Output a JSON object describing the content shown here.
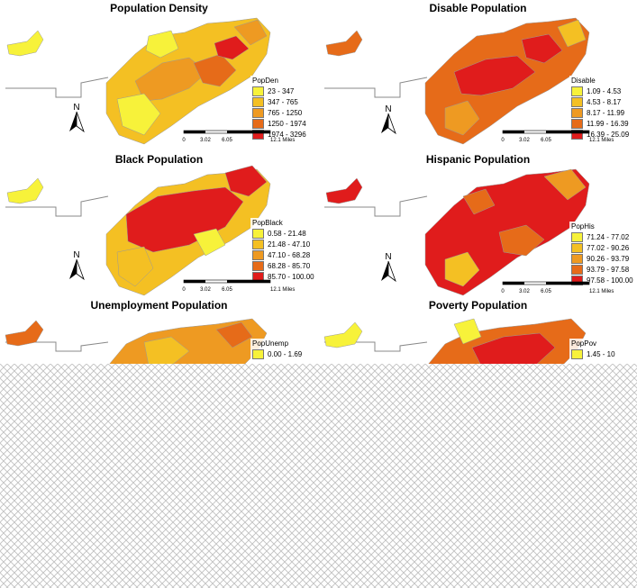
{
  "panels": [
    {
      "title": "Population Density",
      "legend": {
        "field": "PopDen",
        "classes": [
          {
            "label": "23 - 347",
            "color": "#f7f23a"
          },
          {
            "label": "347 - 765",
            "color": "#f4c023"
          },
          {
            "label": "765 - 1250",
            "color": "#ee9a22"
          },
          {
            "label": "1250 - 1974",
            "color": "#e66b19"
          },
          {
            "label": "1974 - 3296",
            "color": "#e01c1c"
          }
        ]
      },
      "scale": {
        "ticks": [
          "0",
          "3.02",
          "6.05",
          "12.1 Miles"
        ]
      }
    },
    {
      "title": "Disable Population",
      "legend": {
        "field": "Disable",
        "classes": [
          {
            "label": "1.09 - 4.53",
            "color": "#f7f23a"
          },
          {
            "label": "4.53 - 8.17",
            "color": "#f4c023"
          },
          {
            "label": "8.17 - 11.99",
            "color": "#ee9a22"
          },
          {
            "label": "11.99 - 16.39",
            "color": "#e66b19"
          },
          {
            "label": "16.39 - 25.09",
            "color": "#e01c1c"
          }
        ]
      },
      "scale": {
        "ticks": [
          "0",
          "3.02",
          "6.05",
          "12.1 Miles"
        ]
      }
    },
    {
      "title": "Black Population",
      "legend": {
        "field": "PopBlack",
        "classes": [
          {
            "label": "0.58 - 21.48",
            "color": "#f7f23a"
          },
          {
            "label": "21.48 - 47.10",
            "color": "#f4c023"
          },
          {
            "label": "47.10 - 68.28",
            "color": "#ee9a22"
          },
          {
            "label": "68.28 - 85.70",
            "color": "#e66b19"
          },
          {
            "label": "85.70 - 100.00",
            "color": "#e01c1c"
          }
        ]
      },
      "scale": {
        "ticks": [
          "0",
          "3.02",
          "6.05",
          "12.1 Miles"
        ]
      }
    },
    {
      "title": "Hispanic Population",
      "legend": {
        "field": "PopHis",
        "classes": [
          {
            "label": "71.24 - 77.02",
            "color": "#f7f23a"
          },
          {
            "label": "77.02 - 90.26",
            "color": "#f4c023"
          },
          {
            "label": "90.26 - 93.79",
            "color": "#ee9a22"
          },
          {
            "label": "93.79 - 97.58",
            "color": "#e66b19"
          },
          {
            "label": "97.58 - 100.00",
            "color": "#e01c1c"
          }
        ]
      },
      "scale": {
        "ticks": [
          "0",
          "3.02",
          "6.05",
          "12.1 Miles"
        ]
      }
    },
    {
      "title": "Unemployment Population",
      "legend": {
        "field": "PopUnemp",
        "classes": [
          {
            "label": "0.00 - 1.69",
            "color": "#f7f23a"
          }
        ]
      },
      "scale": {
        "ticks": []
      }
    },
    {
      "title": "Poverty Population",
      "legend": {
        "field": "PopPov",
        "classes": [
          {
            "label": "1.45 - 10",
            "color": "#f7f23a"
          }
        ]
      },
      "scale": {
        "ticks": []
      }
    }
  ],
  "north_label": "N"
}
